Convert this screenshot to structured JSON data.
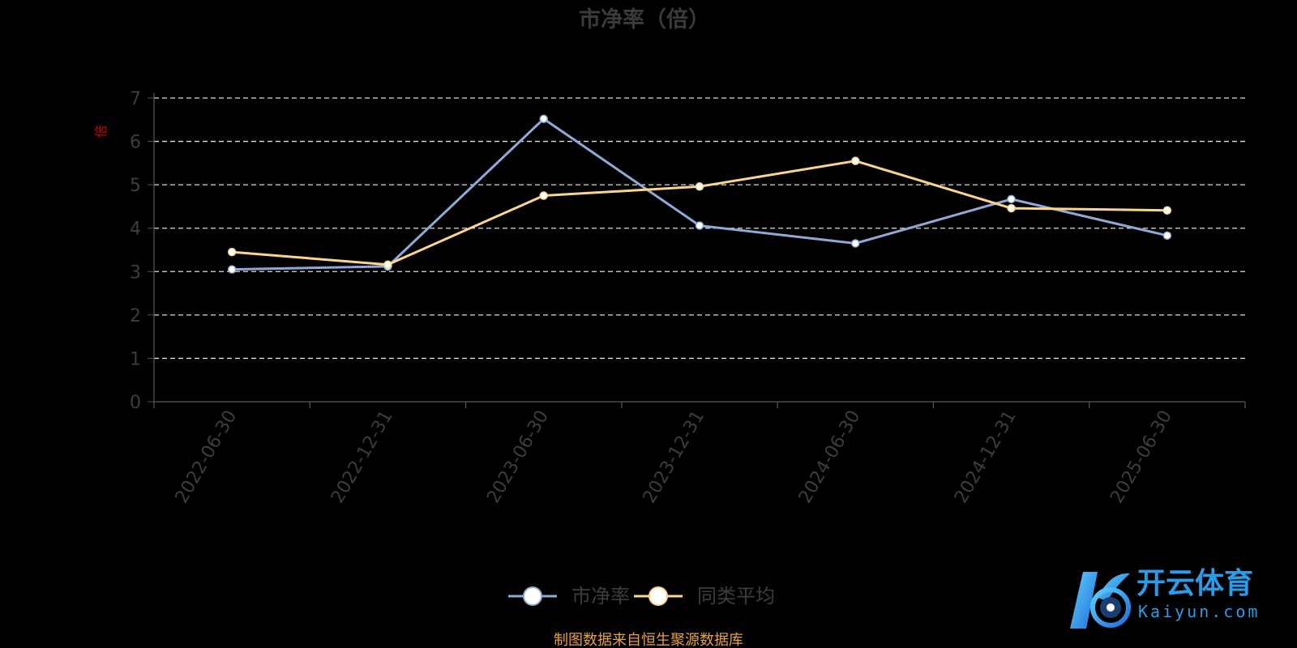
{
  "chart_data": {
    "type": "line",
    "title": "市净率（倍）",
    "ylabel": "倍",
    "xlabel": "",
    "categories": [
      "2022-06-30",
      "2022-12-31",
      "2023-06-30",
      "2023-12-31",
      "2024-06-30",
      "2024-12-31",
      "2025-06-30"
    ],
    "ylim": [
      0,
      7
    ],
    "yticks": [
      "0",
      "1",
      "2",
      "3",
      "4",
      "5",
      "6",
      "7"
    ],
    "grid": true,
    "legend_position": "bottom-center",
    "series": [
      {
        "name": "市净率",
        "color": "#8fa9d8",
        "values": [
          3.05,
          3.12,
          6.52,
          4.06,
          3.65,
          4.67,
          3.83
        ]
      },
      {
        "name": "同类平均",
        "color": "#fcd48a",
        "values": [
          3.45,
          3.16,
          4.75,
          4.96,
          5.55,
          4.46,
          4.41
        ]
      }
    ],
    "source_note": "制图数据来自恒生聚源数据库"
  },
  "watermark": {
    "brand_cn": "开云体育",
    "brand_en": "Kaiyun.com"
  },
  "colors": {
    "background": "#000000",
    "title": "#3a3a3a",
    "axis_text": "#3d3d3d",
    "ylabel": "#cc0000",
    "grid": "#dddddd",
    "source_note": "#e8a03c",
    "logo_blue": "#2a9ce8"
  }
}
